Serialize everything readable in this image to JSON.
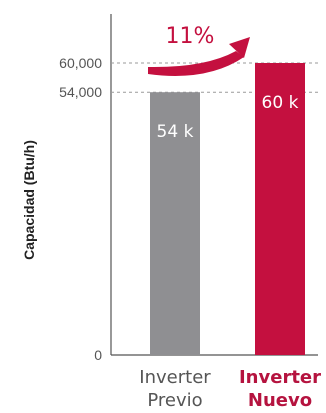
{
  "chart_data": {
    "type": "bar",
    "ylabel": "Capacidad (Btu/h)",
    "yticks": [
      {
        "value": 0,
        "label": "0"
      },
      {
        "value": 54000,
        "label": "54,000"
      },
      {
        "value": 60000,
        "label": "60,000"
      }
    ],
    "categories": [
      {
        "lines": [
          "Inverter",
          "Previo"
        ],
        "highlight": false
      },
      {
        "lines": [
          "Inverter",
          "Nuevo"
        ],
        "highlight": true
      }
    ],
    "values": [
      54000,
      60000
    ],
    "data_labels": [
      "54 k",
      "60 k"
    ],
    "colors": [
      "#8f8f92",
      "#c4103f"
    ],
    "annotation": "11%",
    "annotation_color": "#c4103f",
    "ylim": [
      0,
      60000
    ],
    "grid": "dashed at labeled ticks"
  }
}
